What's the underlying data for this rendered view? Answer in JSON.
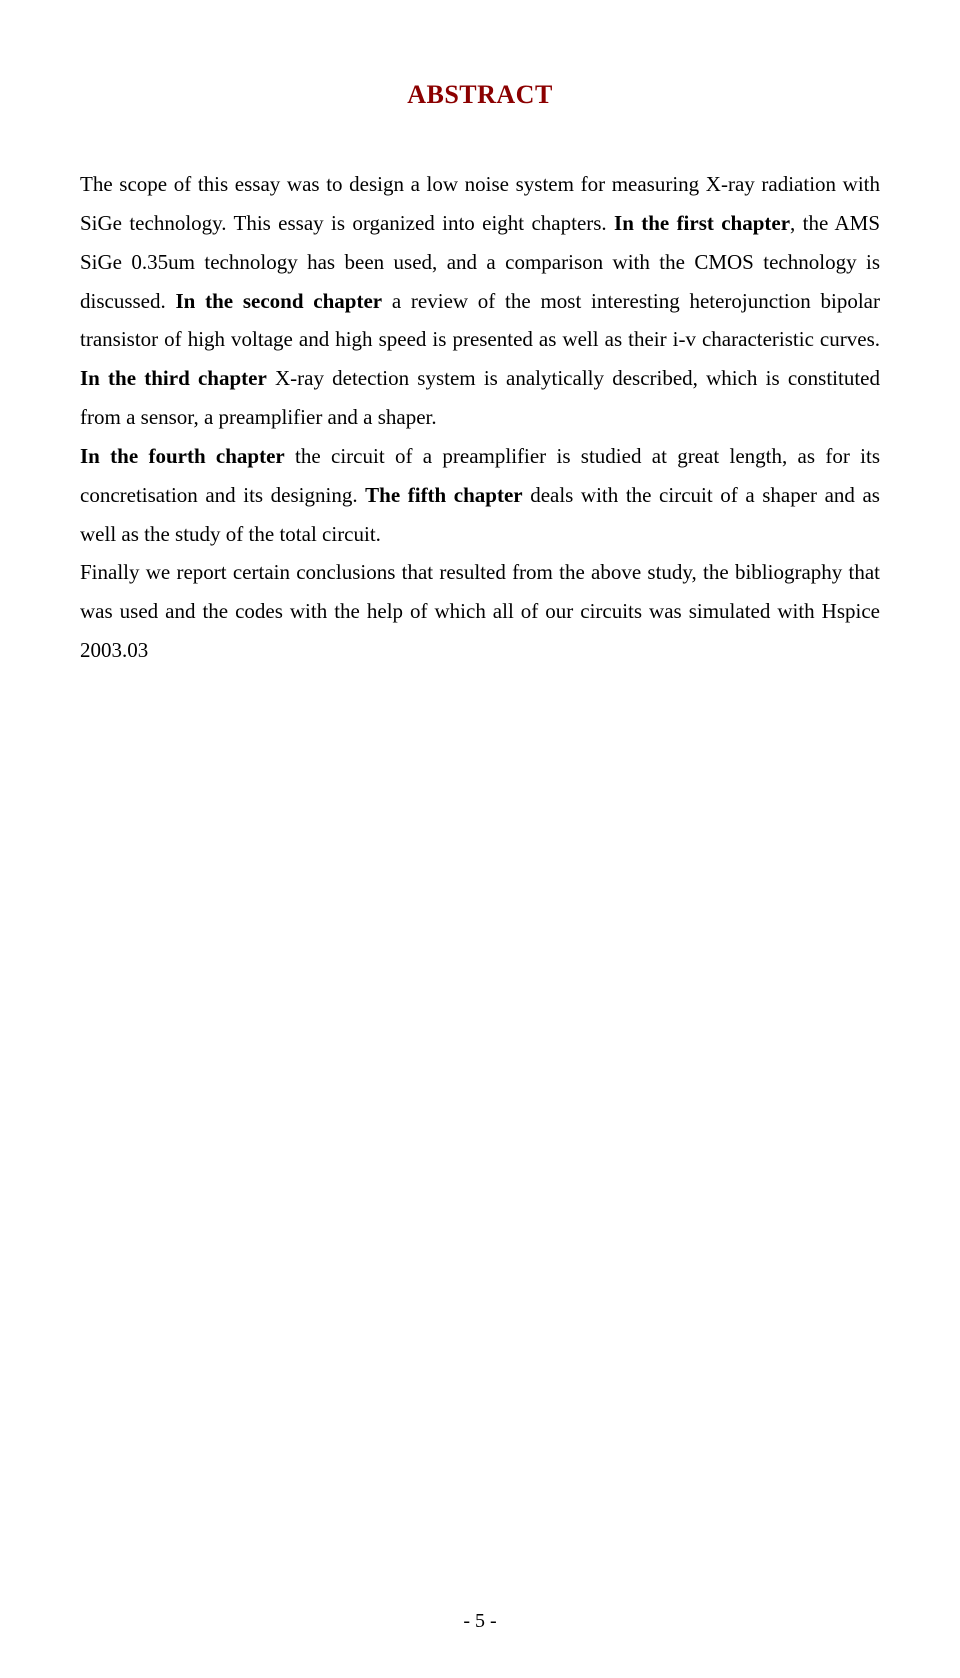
{
  "title": "ABSTRACT",
  "title_color": "#8b0000",
  "background_color": "#ffffff",
  "text_color": "#000000",
  "font_family": "Times New Roman",
  "title_fontsize": 26,
  "body_fontsize": 21,
  "page_number": "- 5 -",
  "paragraphs": {
    "p1_part1": "The scope of this essay was to design a low noise system for measuring X-ray radiation with SiGe technology. This essay is organized into eight chapters.",
    "p1_bold1": "In the first chapter",
    "p1_part2": ", the AMS SiGe 0.35um technology has been used, and a comparison with the CMOS technology is discussed. ",
    "p1_bold2": "In the second chapter",
    "p1_part3": " a review of the most interesting heterojunction bipolar transistor of high voltage and high speed is presented as well as their i-v  characteristic curves. ",
    "p1_bold3": "In the third chapter",
    "p1_part4": " X-ray detection system is analytically described, which is constituted from a sensor, a preamplifier and a shaper.",
    "p2_bold1": "In the fourth chapter",
    "p2_part1": " the circuit of a preamplifier is studied at great length, as for its concretisation and its designing. ",
    "p2_bold2": "The fifth chapter",
    "p2_part2": " deals with the circuit of a shaper and as well as the study of the total circuit.",
    "p3_part1": "Finally we report certain conclusions that resulted from the above study, the bibliography that was used and the codes with the help of which all of our circuits was simulated with Hspice 2003.03"
  }
}
